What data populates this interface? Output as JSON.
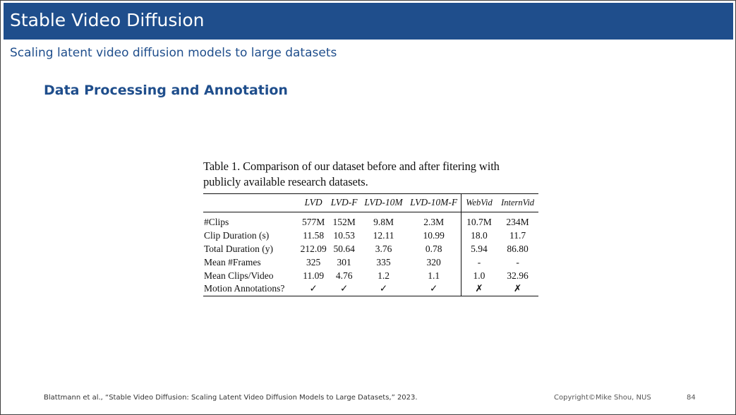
{
  "slide": {
    "title": "Stable Video Diffusion",
    "subtitle": "Scaling latent video diffusion models to large datasets",
    "section_heading": "Data Processing and Annotation",
    "colors": {
      "title_bar": "#1f4e8c",
      "title_text": "#ffffff",
      "accent": "#1f4e8c"
    }
  },
  "table": {
    "caption_line1": "Table 1.  Comparison of our dataset before and after fitering with",
    "caption_line2": "publicly available research datasets.",
    "columns": [
      "LVD",
      "LVD-F",
      "LVD-10M",
      "LVD-10M-F",
      "WebVid",
      "InternVid"
    ],
    "rows": [
      {
        "label": "#Clips",
        "cells": [
          "577M",
          "152M",
          "9.8M",
          "2.3M",
          "10.7M",
          "234M"
        ]
      },
      {
        "label": "Clip Duration (s)",
        "cells": [
          "11.58",
          "10.53",
          "12.11",
          "10.99",
          "18.0",
          "11.7"
        ]
      },
      {
        "label": "Total Duration (y)",
        "cells": [
          "212.09",
          "50.64",
          "3.76",
          "0.78",
          "5.94",
          "86.80"
        ]
      },
      {
        "label": "Mean #Frames",
        "cells": [
          "325",
          "301",
          "335",
          "320",
          "-",
          "-"
        ]
      },
      {
        "label": "Mean Clips/Video",
        "cells": [
          "11.09",
          "4.76",
          "1.2",
          "1.1",
          "1.0",
          "32.96"
        ]
      },
      {
        "label": "Motion Annotations?",
        "cells": [
          "✓",
          "✓",
          "✓",
          "✓",
          "✗",
          "✗"
        ]
      }
    ]
  },
  "footer": {
    "reference": "Blattmann et al., “Stable Video Diffusion: Scaling Latent Video Diffusion Models to Large Datasets,” 2023.",
    "copyright": "Copyright©Mike Shou, NUS",
    "page_number": "84"
  }
}
